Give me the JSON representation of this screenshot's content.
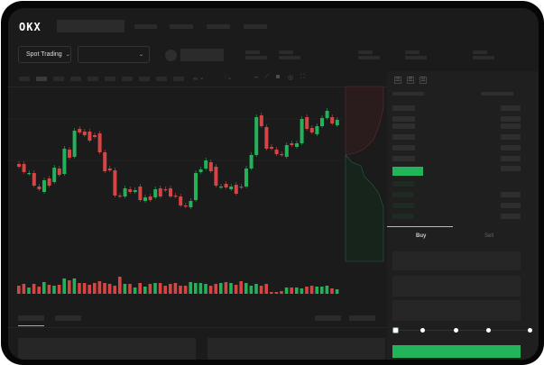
{
  "header": {
    "logo": "OKX"
  },
  "toolbar": {
    "market_select": "Spot Trading",
    "pair_select": ""
  },
  "trade_form": {
    "tabs": [
      "Buy",
      "Sell"
    ],
    "active_tab": "Buy",
    "slider_percent": 0,
    "slider_marks": [
      0,
      25,
      50,
      75,
      100
    ]
  },
  "colors": {
    "up": "#23b15a",
    "down": "#d64545",
    "background": "#1b1b1b",
    "accent": "#22b45a"
  },
  "chart_data": {
    "type": "candlestick",
    "title": "",
    "xlabel": "",
    "ylabel": "",
    "grid": true,
    "candles": [
      [
        118,
        115
      ],
      [
        118,
        109
      ],
      [
        107,
        108
      ],
      [
        108,
        94
      ],
      [
        93,
        90
      ],
      [
        87,
        100
      ],
      [
        102,
        94
      ],
      [
        98,
        114
      ],
      [
        113,
        106
      ],
      [
        107,
        135
      ],
      [
        134,
        125
      ],
      [
        126,
        155
      ],
      [
        157,
        153
      ],
      [
        154,
        150
      ],
      [
        154,
        144
      ],
      [
        150,
        148
      ],
      [
        152,
        131
      ],
      [
        131,
        110
      ],
      [
        113,
        111
      ],
      [
        111,
        83
      ],
      [
        83,
        82
      ],
      [
        82,
        91
      ],
      [
        90,
        87
      ],
      [
        87,
        89
      ],
      [
        93,
        78
      ],
      [
        77,
        81
      ],
      [
        82,
        78
      ],
      [
        81,
        90
      ],
      [
        91,
        82
      ],
      [
        90,
        89
      ],
      [
        91,
        82
      ],
      [
        83,
        82
      ],
      [
        82,
        72
      ],
      [
        72,
        71
      ],
      [
        70,
        77
      ],
      [
        78,
        108
      ],
      [
        109,
        112
      ],
      [
        113,
        122
      ],
      [
        120,
        110
      ],
      [
        115,
        94
      ],
      [
        92,
        93
      ],
      [
        96,
        92
      ],
      [
        90,
        93
      ],
      [
        95,
        85
      ],
      [
        93,
        92
      ],
      [
        93,
        113
      ],
      [
        113,
        128
      ],
      [
        128,
        170
      ],
      [
        172,
        160
      ],
      [
        159,
        135
      ],
      [
        137,
        135
      ],
      [
        134,
        129
      ],
      [
        129,
        128
      ],
      [
        126,
        139
      ],
      [
        141,
        139
      ],
      [
        137,
        141
      ],
      [
        141,
        168
      ],
      [
        170,
        157
      ],
      [
        158,
        153
      ],
      [
        151,
        160
      ],
      [
        160,
        169
      ],
      [
        169,
        177
      ],
      [
        170,
        163
      ],
      [
        161,
        167
      ]
    ],
    "volume": [
      9,
      11,
      7,
      11,
      8,
      13,
      10,
      9,
      10,
      17,
      15,
      17,
      12,
      12,
      10,
      12,
      14,
      12,
      11,
      9,
      19,
      11,
      11,
      7,
      12,
      8,
      11,
      12,
      12,
      9,
      11,
      12,
      9,
      9,
      13,
      12,
      12,
      11,
      9,
      11,
      12,
      13,
      12,
      10,
      14,
      12,
      9,
      11,
      9,
      11,
      2,
      2,
      3,
      7,
      7,
      7,
      6,
      8,
      9,
      8,
      8,
      9,
      6,
      5
    ]
  }
}
